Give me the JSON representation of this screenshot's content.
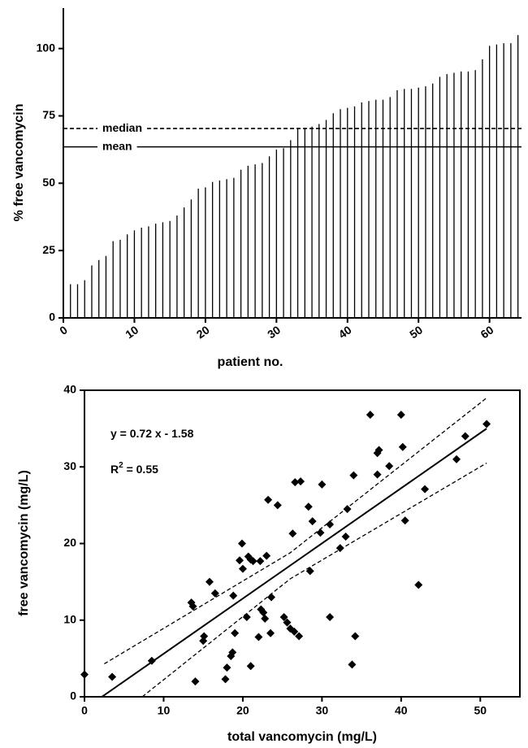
{
  "chart_data": [
    {
      "type": "bar",
      "y_label": "% free vancomycin",
      "x_label": "patient no.",
      "x": [
        1,
        2,
        3,
        4,
        5,
        6,
        7,
        8,
        9,
        10,
        11,
        12,
        13,
        14,
        15,
        16,
        17,
        18,
        19,
        20,
        21,
        22,
        23,
        24,
        25,
        26,
        27,
        28,
        29,
        30,
        31,
        32,
        33,
        34,
        35,
        36,
        37,
        38,
        39,
        40,
        41,
        42,
        43,
        44,
        45,
        46,
        47,
        48,
        49,
        50,
        51,
        52,
        53,
        54,
        55,
        56,
        57,
        58,
        59,
        60,
        61,
        62,
        63,
        64
      ],
      "values": [
        12.5,
        12.5,
        14,
        19.5,
        21.5,
        23,
        28.5,
        29,
        31,
        32.5,
        33.5,
        34,
        35,
        35.5,
        36,
        38,
        41,
        44,
        48,
        48.5,
        50.5,
        51,
        51.5,
        52,
        55,
        56.5,
        57,
        57.5,
        60,
        62.5,
        63,
        66,
        70.5,
        70.5,
        71,
        72,
        73.5,
        76,
        77.5,
        78,
        78.5,
        80,
        80.5,
        81,
        81,
        82,
        84.5,
        85,
        85,
        85.5,
        86,
        87,
        89.5,
        90.5,
        91,
        91.5,
        91.5,
        92,
        96,
        101,
        101.5,
        102,
        102,
        105
      ],
      "color": "#000000",
      "xlim": [
        0,
        64.5
      ],
      "ylim": [
        0,
        115
      ],
      "xticks": [
        0,
        10,
        20,
        30,
        40,
        50,
        60
      ],
      "yticks": [
        0,
        25,
        50,
        75,
        100
      ],
      "reference_lines": [
        {
          "label": "median",
          "value": 70.3,
          "style": "dashed"
        },
        {
          "label": "mean",
          "value": 63.5,
          "style": "solid"
        }
      ]
    },
    {
      "type": "scatter",
      "y_label": "free vancomycin (mg/L)",
      "x_label": "total vancomycin (mg/L)",
      "x": [
        0,
        3.5,
        8.5,
        13.5,
        13.7,
        14,
        15,
        15.1,
        15.8,
        16.5,
        17.8,
        18,
        18.5,
        18.7,
        18.8,
        19,
        19.6,
        19.9,
        20,
        20.5,
        20.7,
        21,
        21,
        21.3,
        22,
        22.2,
        22.3,
        22.6,
        22.8,
        23,
        23.2,
        23.5,
        23.6,
        24.4,
        25.2,
        25.6,
        26,
        26.3,
        26.5,
        26.6,
        27.1,
        27.3,
        28.3,
        28.5,
        28.8,
        29.8,
        30,
        31,
        31,
        32.3,
        33,
        33.2,
        33.8,
        34,
        34.2,
        36.1,
        37,
        37,
        37.2,
        38.5,
        40,
        40.2,
        40.5,
        42.2,
        43,
        47,
        48.1,
        50.8
      ],
      "values": [
        2.9,
        2.6,
        4.7,
        12.3,
        11.8,
        2,
        7.3,
        7.9,
        15,
        13.5,
        2.3,
        3.8,
        5.3,
        5.8,
        13.2,
        8.3,
        17.8,
        20,
        16.7,
        10.4,
        18.3,
        4,
        17.9,
        17.7,
        7.8,
        17.7,
        11.4,
        11,
        10.2,
        18.4,
        25.7,
        8.3,
        13,
        25,
        10.4,
        9.7,
        8.9,
        21.3,
        8.5,
        28,
        7.9,
        28.1,
        24.8,
        16.4,
        22.9,
        21.4,
        27.7,
        10.4,
        22.5,
        19.4,
        20.9,
        24.5,
        4.2,
        28.9,
        7.9,
        36.8,
        29,
        31.8,
        32.2,
        30.1,
        36.8,
        32.6,
        23,
        14.6,
        27.1,
        31,
        34,
        35.6
      ],
      "color": "#000000",
      "xlim": [
        0,
        55
      ],
      "ylim": [
        0,
        40
      ],
      "xticks": [
        0,
        10,
        20,
        30,
        40,
        50
      ],
      "yticks": [
        0,
        10,
        20,
        30,
        40
      ],
      "annotations": [
        {
          "text": "y = 0.72 x - 1.58"
        },
        {
          "text": "R",
          "sup": "2",
          "rest": " = 0.55"
        }
      ],
      "lines": [
        {
          "style": "solid",
          "x": [
            2.2,
            50.8
          ],
          "y": [
            0,
            35
          ]
        },
        {
          "style": "dashed",
          "x": [
            2.5,
            26,
            50.8
          ],
          "y": [
            4.3,
            18.8,
            39
          ]
        },
        {
          "style": "dashed",
          "x": [
            7.3,
            26,
            50.8
          ],
          "y": [
            0,
            15.4,
            30.5
          ]
        }
      ]
    }
  ]
}
